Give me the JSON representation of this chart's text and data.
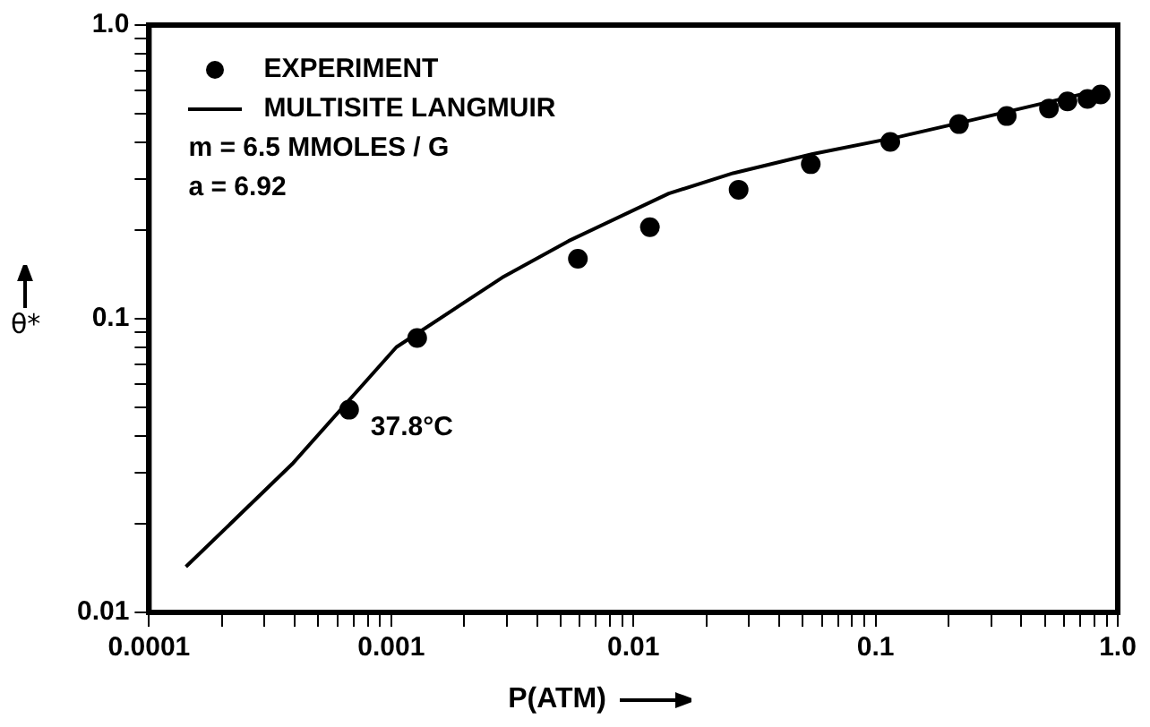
{
  "chart_data": {
    "type": "scatter",
    "xlabel": "P(ATM)",
    "ylabel": "θ*",
    "log": "xy",
    "grid": false,
    "legend": "top left",
    "xlim": [
      0.0001,
      1
    ],
    "ylim": [
      0.01,
      1
    ],
    "xticks": [
      0.0001,
      {
        "value": 0.0002,
        "label": null
      },
      {
        "value": 0.0003,
        "label": null
      },
      {
        "value": 0.0004,
        "label": null
      },
      {
        "value": 0.0005,
        "label": null
      },
      {
        "value": 0.0006,
        "label": null
      },
      {
        "value": 0.0007,
        "label": null
      },
      {
        "value": 0.0008,
        "label": null
      },
      {
        "value": 0.0009,
        "label": null
      },
      0.001,
      {
        "value": 0.002,
        "label": null
      },
      {
        "value": 0.003,
        "label": null
      },
      {
        "value": 0.004,
        "label": null
      },
      {
        "value": 0.005,
        "label": null
      },
      {
        "value": 0.006,
        "label": null
      },
      {
        "value": 0.007,
        "label": null
      },
      {
        "value": 0.008,
        "label": null
      },
      {
        "value": 0.009,
        "label": null
      },
      0.01,
      {
        "value": 0.02,
        "label": null
      },
      {
        "value": 0.03,
        "label": null
      },
      {
        "value": 0.04,
        "label": null
      },
      {
        "value": 0.05,
        "label": null
      },
      {
        "value": 0.06,
        "label": null
      },
      {
        "value": 0.07,
        "label": null
      },
      {
        "value": 0.08,
        "label": null
      },
      {
        "value": 0.09,
        "label": null
      },
      0.1,
      {
        "value": 0.2,
        "label": null
      },
      {
        "value": 0.3,
        "label": null
      },
      {
        "value": 0.4,
        "label": null
      },
      {
        "value": 0.5,
        "label": null
      },
      {
        "value": 0.6,
        "label": null
      },
      {
        "value": 0.7,
        "label": null
      },
      {
        "value": 0.8,
        "label": null
      },
      {
        "value": 0.9,
        "label": null
      },
      {
        "value": 1,
        "label": "1.0"
      }
    ],
    "yticks": [
      0.01,
      {
        "value": 0.02,
        "label": null
      },
      {
        "value": 0.03,
        "label": null
      },
      {
        "value": 0.04,
        "label": null
      },
      {
        "value": 0.05,
        "label": null
      },
      {
        "value": 0.06,
        "label": null
      },
      {
        "value": 0.07,
        "label": null
      },
      {
        "value": 0.08,
        "label": null
      },
      {
        "value": 0.09,
        "label": null
      },
      0.1,
      {
        "value": 0.2,
        "label": null
      },
      {
        "value": 0.3,
        "label": null
      },
      {
        "value": 0.4,
        "label": null
      },
      {
        "value": 0.5,
        "label": null
      },
      {
        "value": 0.6,
        "label": null
      },
      {
        "value": 0.7,
        "label": null
      },
      {
        "value": 0.8,
        "label": null
      },
      {
        "value": 0.9,
        "label": null
      },
      {
        "value": 1,
        "label": "1.0"
      }
    ],
    "series": [
      {
        "name": "EXPERIMENT",
        "marker": "circle",
        "color": "#000000",
        "x": [
          0.00067,
          0.00128,
          0.0059,
          0.0117,
          0.0272,
          0.054,
          0.115,
          0.221,
          0.348,
          0.52,
          0.62,
          0.75,
          0.85
        ],
        "values": [
          0.049,
          0.086,
          0.16,
          0.205,
          0.275,
          0.336,
          0.4,
          0.46,
          0.49,
          0.52,
          0.55,
          0.56,
          0.58
        ]
      },
      {
        "name": "MULTISITE LANGMUIR",
        "type": "line",
        "marker": "none",
        "line_style": "solid",
        "color": "#000000",
        "x": [
          0.000142,
          0.00039,
          0.00105,
          0.00287,
          0.0054,
          0.014,
          0.0258,
          0.055,
          0.126,
          0.232,
          0.87
        ],
        "values": [
          0.0143,
          0.032,
          0.08,
          0.138,
          0.184,
          0.267,
          0.313,
          0.364,
          0.417,
          0.468,
          0.605
        ]
      }
    ],
    "annotations": [
      {
        "text": "37.8°C",
        "x": 0.00067,
        "y": 0.049
      },
      "m = 6.5 MMOLES / G",
      "a = 6.92"
    ]
  }
}
